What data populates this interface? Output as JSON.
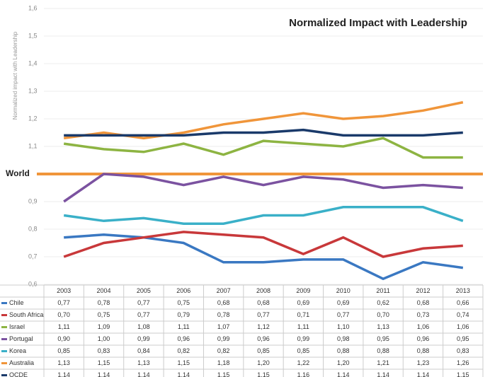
{
  "chart_data": {
    "type": "line",
    "title": "Normalized Impact with Leadership",
    "y_label": "Normalized impact with Leadership",
    "categories": [
      "2003",
      "2004",
      "2005",
      "2006",
      "2007",
      "2008",
      "2009",
      "2010",
      "2011",
      "2012",
      "2013"
    ],
    "ylim": [
      0.6,
      1.6
    ],
    "yticks": [
      {
        "value": 0.6,
        "label": "0,6"
      },
      {
        "value": 0.7,
        "label": "0,7"
      },
      {
        "value": 0.8,
        "label": "0,8"
      },
      {
        "value": 0.9,
        "label": "0,9"
      },
      {
        "value": 1,
        "label": "World"
      },
      {
        "value": 1.1,
        "label": "1,1"
      },
      {
        "value": 1.2,
        "label": "1,2"
      },
      {
        "value": 1.3,
        "label": "1,3"
      },
      {
        "value": 1.4,
        "label": "1,4"
      },
      {
        "value": 1.5,
        "label": "1,5"
      },
      {
        "value": 1.6,
        "label": "1,6"
      }
    ],
    "grid": true,
    "reference_line": {
      "value": 1,
      "color": "#f0953a"
    },
    "series": [
      {
        "name": "Chile",
        "color": "#3a78c2",
        "values": [
          0.77,
          0.78,
          0.77,
          0.75,
          0.68,
          0.68,
          0.69,
          0.69,
          0.62,
          0.68,
          0.66
        ],
        "value_labels": [
          "0,77",
          "0,78",
          "0,77",
          "0,75",
          "0,68",
          "0,68",
          "0,69",
          "0,69",
          "0,62",
          "0,68",
          "0,66"
        ]
      },
      {
        "name": "South Africa",
        "color": "#c8383a",
        "values": [
          0.7,
          0.75,
          0.77,
          0.79,
          0.78,
          0.77,
          0.71,
          0.77,
          0.7,
          0.73,
          0.74
        ],
        "value_labels": [
          "0,70",
          "0,75",
          "0,77",
          "0,79",
          "0,78",
          "0,77",
          "0,71",
          "0,77",
          "0,70",
          "0,73",
          "0,74"
        ]
      },
      {
        "name": "Israel",
        "color": "#8db442",
        "values": [
          1.11,
          1.09,
          1.08,
          1.11,
          1.07,
          1.12,
          1.11,
          1.1,
          1.13,
          1.06,
          1.06
        ],
        "value_labels": [
          "1,11",
          "1,09",
          "1,08",
          "1,11",
          "1,07",
          "1,12",
          "1,11",
          "1,10",
          "1,13",
          "1,06",
          "1,06"
        ]
      },
      {
        "name": "Portugal",
        "color": "#7b52a0",
        "values": [
          0.9,
          1.0,
          0.99,
          0.96,
          0.99,
          0.96,
          0.99,
          0.98,
          0.95,
          0.96,
          0.95
        ],
        "value_labels": [
          "0,90",
          "1,00",
          "0,99",
          "0,96",
          "0,99",
          "0,96",
          "0,99",
          "0,98",
          "0,95",
          "0,96",
          "0,95"
        ]
      },
      {
        "name": "Korea",
        "color": "#3ab0c8",
        "values": [
          0.85,
          0.83,
          0.84,
          0.82,
          0.82,
          0.85,
          0.85,
          0.88,
          0.88,
          0.88,
          0.83
        ],
        "value_labels": [
          "0,85",
          "0,83",
          "0,84",
          "0,82",
          "0,82",
          "0,85",
          "0,85",
          "0,88",
          "0,88",
          "0,88",
          "0,83"
        ]
      },
      {
        "name": "Australia",
        "color": "#f0953a",
        "values": [
          1.13,
          1.15,
          1.13,
          1.15,
          1.18,
          1.2,
          1.22,
          1.2,
          1.21,
          1.23,
          1.26
        ],
        "value_labels": [
          "1,13",
          "1,15",
          "1,13",
          "1,15",
          "1,18",
          "1,20",
          "1,22",
          "1,20",
          "1,21",
          "1,23",
          "1,26"
        ]
      },
      {
        "name": "OCDE",
        "color": "#1a3a6a",
        "values": [
          1.14,
          1.14,
          1.14,
          1.14,
          1.15,
          1.15,
          1.16,
          1.14,
          1.14,
          1.14,
          1.15
        ],
        "value_labels": [
          "1,14",
          "1,14",
          "1,14",
          "1,14",
          "1,15",
          "1,15",
          "1,16",
          "1,14",
          "1,14",
          "1,14",
          "1,15"
        ]
      }
    ]
  }
}
